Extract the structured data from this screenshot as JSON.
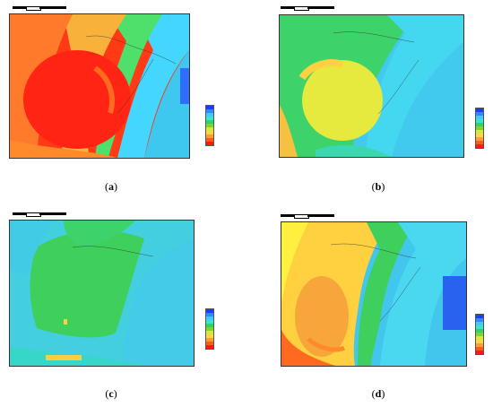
{
  "figure": {
    "panels": [
      {
        "id": "a",
        "label": "a",
        "scheme": "hot"
      },
      {
        "id": "b",
        "label": "b",
        "scheme": "mild"
      },
      {
        "id": "c",
        "label": "c",
        "scheme": "cool"
      },
      {
        "id": "d",
        "label": "d",
        "scheme": "warm"
      }
    ],
    "legend_colors": [
      "#1e3cff",
      "#2f8bff",
      "#43c8ff",
      "#39e6c8",
      "#2ed36b",
      "#7fd432",
      "#d8e83a",
      "#ffd34a",
      "#ff9e2e",
      "#ff5a1e",
      "#ff1a10"
    ]
  }
}
